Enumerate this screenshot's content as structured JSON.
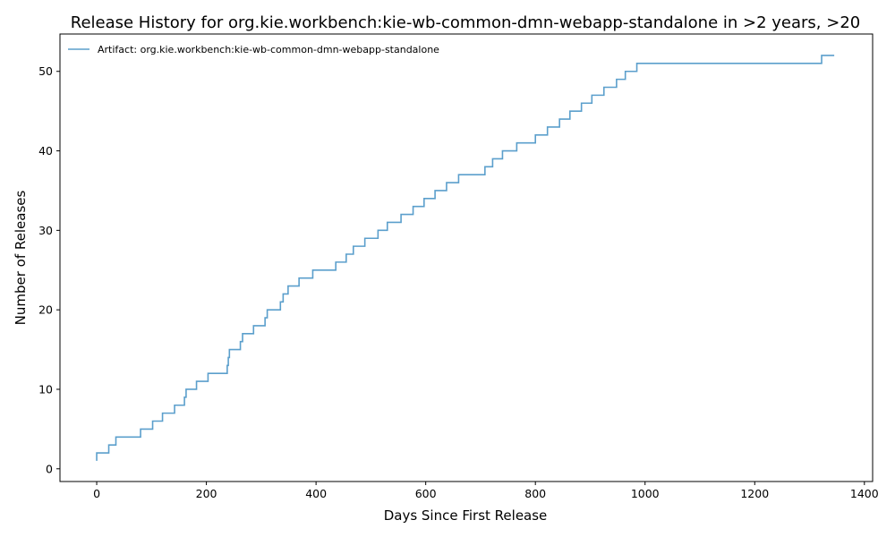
{
  "chart_data": {
    "type": "line",
    "step": "post",
    "title": "Release History for org.kie.workbench:kie-wb-common-dmn-webapp-standalone in >2 years, >20",
    "xlabel": "Days Since First Release",
    "ylabel": "Number of Releases",
    "xlim": [
      -67,
      1415
    ],
    "ylim": [
      -1.6,
      54.7
    ],
    "xticks": [
      0,
      200,
      400,
      600,
      800,
      1000,
      1200,
      1400
    ],
    "yticks": [
      0,
      10,
      20,
      30,
      40,
      50
    ],
    "grid": false,
    "legend": "upper-left",
    "series": [
      {
        "name": "Artifact: org.kie.workbench:kie-wb-common-dmn-webapp-standalone",
        "color": "#5b9fcc",
        "x": [
          0,
          0,
          22,
          35,
          80,
          102,
          120,
          142,
          160,
          163,
          182,
          203,
          238,
          240,
          242,
          245,
          262,
          266,
          286,
          307,
          311,
          315,
          335,
          340,
          349,
          369,
          394,
          436,
          455,
          468,
          489,
          513,
          530,
          555,
          577,
          597,
          617,
          638,
          660,
          708,
          722,
          740,
          766,
          800,
          822,
          844,
          863,
          884,
          903,
          925,
          948,
          964,
          985,
          1322,
          1345
        ],
        "y": [
          1,
          2,
          3,
          4,
          5,
          6,
          7,
          8,
          9,
          10,
          11,
          12,
          13,
          14,
          15,
          15,
          16,
          17,
          18,
          19,
          20,
          20,
          21,
          22,
          23,
          24,
          25,
          26,
          27,
          28,
          29,
          30,
          31,
          32,
          33,
          34,
          35,
          36,
          37,
          38,
          39,
          40,
          41,
          42,
          43,
          44,
          45,
          46,
          47,
          48,
          49,
          50,
          51,
          52,
          52
        ]
      }
    ]
  }
}
